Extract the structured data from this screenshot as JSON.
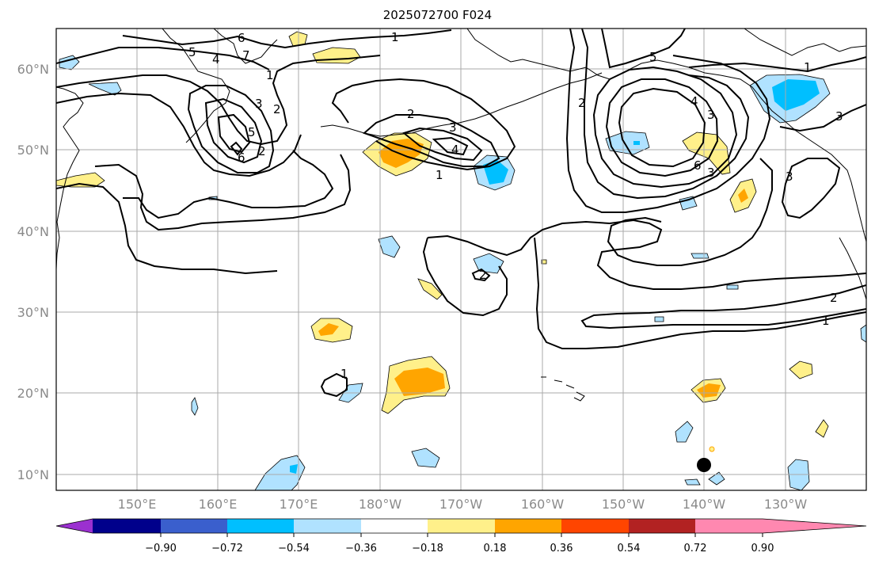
{
  "title": "2025072700 F024",
  "axes": {
    "lat_labels": [
      "60°N",
      "50°N",
      "40°N",
      "30°N",
      "20°N",
      "10°N"
    ],
    "lon_labels": [
      "150°E",
      "160°E",
      "170°E",
      "180°W",
      "170°W",
      "160°W",
      "150°W",
      "140°W",
      "130°W"
    ]
  },
  "colorbar": {
    "colors": [
      "#9b30d0",
      "#00008b",
      "#3a5fcd",
      "#00bfff",
      "#b0e2ff",
      "#ffffff",
      "#fff08a",
      "#ffa500",
      "#ff4500",
      "#b22222",
      "#ff88b0"
    ],
    "tick_labels": [
      "−0.90",
      "−0.72",
      "−0.54",
      "−0.36",
      "−0.18",
      "0.18",
      "0.36",
      "0.54",
      "0.72",
      "0.90"
    ]
  },
  "contour_labels": [
    "6",
    "5",
    "4",
    "7",
    "3",
    "2",
    "5",
    "6",
    "1",
    "2",
    "3",
    "4",
    "1",
    "2",
    "2",
    "5",
    "4",
    "3",
    "6",
    "3",
    "1",
    "3",
    "3",
    "1",
    "2",
    "1",
    "2",
    "1"
  ],
  "marker": {
    "name": "storm-center-marker",
    "color": "#000000"
  }
}
